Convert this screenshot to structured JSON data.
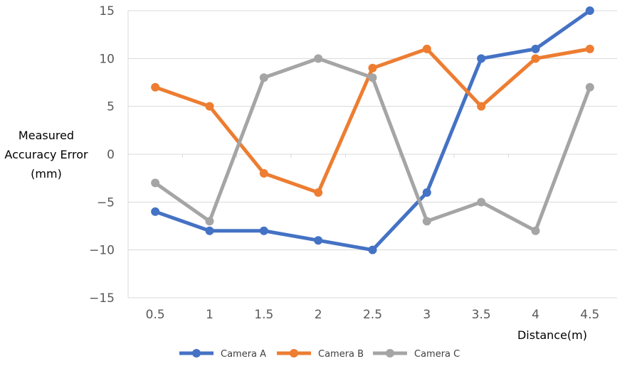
{
  "chart_data": {
    "type": "line",
    "categories": [
      "0.5",
      "1",
      "1.5",
      "2",
      "2.5",
      "3",
      "3.5",
      "4",
      "4.5"
    ],
    "series": [
      {
        "name": "Camera A",
        "color": "#4472C4",
        "values": [
          -6,
          -8,
          -8,
          -9,
          -10,
          -4,
          10,
          11,
          15
        ]
      },
      {
        "name": "Camera B",
        "color": "#ED7D31",
        "values": [
          7,
          5,
          -2,
          -4,
          9,
          11,
          5,
          10,
          11
        ]
      },
      {
        "name": "Camera C",
        "color": "#A5A5A5",
        "values": [
          -3,
          -7,
          8,
          10,
          8,
          -7,
          -5,
          -8,
          7
        ]
      }
    ],
    "ylabel_lines": [
      "Measured",
      "Accuracy Error",
      "(mm)"
    ],
    "xlabel": "Distance(m)",
    "ylim": [
      -15,
      15
    ],
    "yticks": [
      -15,
      -10,
      -5,
      0,
      5,
      10,
      15
    ],
    "grid": true,
    "legend_position": "bottom"
  }
}
